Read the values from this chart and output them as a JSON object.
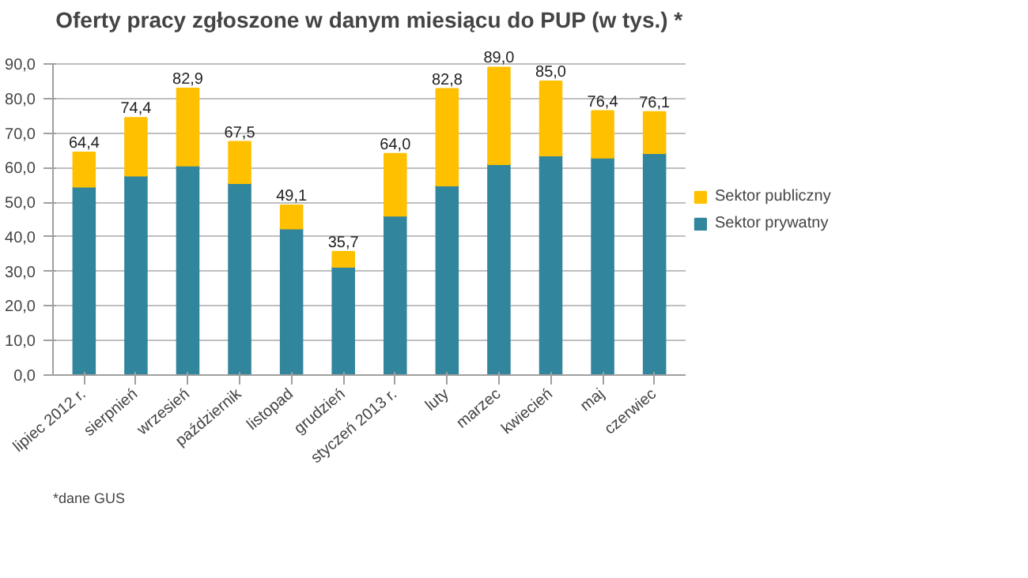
{
  "chart_data": {
    "type": "bar",
    "title": "Oferty pracy zgłoszone w danym miesiącu do PUP (w tys.) *",
    "categories": [
      "lipiec 2012 r.",
      "sierpnień",
      "wrzesień",
      "październik",
      "listopad",
      "grudzień",
      "styczeń 2013 r.",
      "luty",
      "marzec",
      "kwiecień",
      "maj",
      "czerwiec"
    ],
    "stacked": true,
    "series": [
      {
        "name": "Sektor prywatny",
        "color": "#31859c",
        "values": [
          54.5,
          57.7,
          60.6,
          55.5,
          42.4,
          31.3,
          46.1,
          54.8,
          61.0,
          63.5,
          62.9,
          64.2
        ]
      },
      {
        "name": "Sektor publiczny",
        "color": "#ffc000",
        "values": [
          9.9,
          16.7,
          22.3,
          12.0,
          6.7,
          4.4,
          17.9,
          28.0,
          28.0,
          21.5,
          13.5,
          11.9
        ]
      }
    ],
    "totals": [
      "64,4",
      "74,4",
      "82,9",
      "67,5",
      "49,1",
      "35,7",
      "64,0",
      "82,8",
      "89,0",
      "85,0",
      "76,4",
      "76,1"
    ],
    "ylim": [
      0,
      90
    ],
    "yticks": [
      {
        "value": 0,
        "label": "0,0"
      },
      {
        "value": 10,
        "label": "10,0"
      },
      {
        "value": 20,
        "label": "20,0"
      },
      {
        "value": 30,
        "label": "30,0"
      },
      {
        "value": 40,
        "label": "40,0"
      },
      {
        "value": 50,
        "label": "50,0"
      },
      {
        "value": 60,
        "label": "60,0"
      },
      {
        "value": 70,
        "label": "70,0"
      },
      {
        "value": 80,
        "label": "80,0"
      },
      {
        "value": 90,
        "label": "90,0"
      }
    ],
    "grid": "y",
    "legend": "right",
    "annotations": [
      "*dane GUS"
    ]
  }
}
